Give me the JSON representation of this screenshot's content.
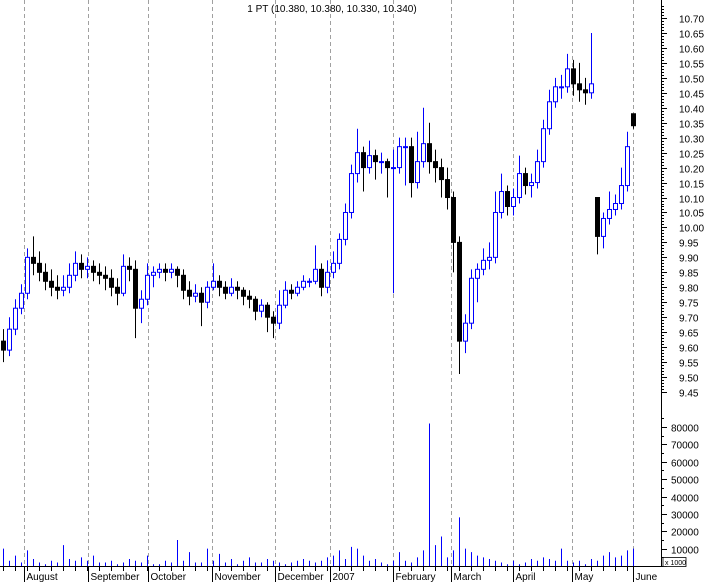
{
  "chart_data": {
    "type": "candlestick",
    "title": "1 PT (10.380, 10.380, 10.330, 10.340)",
    "price_axis": {
      "ylim": [
        9.45,
        10.7
      ],
      "ticks": [
        "10.70",
        "10.65",
        "10.60",
        "10.55",
        "10.50",
        "10.45",
        "10.40",
        "10.35",
        "10.30",
        "10.25",
        "10.20",
        "10.15",
        "10.10",
        "10.05",
        "10.00",
        "9.95",
        "9.90",
        "9.85",
        "9.80",
        "9.75",
        "9.70",
        "9.65",
        "9.60",
        "9.55",
        "9.50",
        "9.45"
      ]
    },
    "volume_axis": {
      "ylim": [
        0,
        80000
      ],
      "ticks": [
        "80000",
        "70000",
        "60000",
        "50000",
        "40000",
        "30000",
        "20000",
        "10000"
      ],
      "unit_label": "x 1000"
    },
    "x_labels": [
      {
        "label": "August",
        "bar": 3.5
      },
      {
        "label": "September",
        "bar": 14.2
      },
      {
        "label": "October",
        "bar": 24.2
      },
      {
        "label": "November",
        "bar": 34.8
      },
      {
        "label": "December",
        "bar": 45.3
      },
      {
        "label": "2007",
        "bar": 54.5
      },
      {
        "label": "February",
        "bar": 65
      },
      {
        "label": "March",
        "bar": 74.7
      },
      {
        "label": "April",
        "bar": 85
      },
      {
        "label": "May",
        "bar": 94.8
      },
      {
        "label": "June",
        "bar": 105
      }
    ],
    "grid": {
      "vertical_month_lines": true
    },
    "colors": {
      "up": "#0000ff",
      "down": "#000000",
      "volume": "#0000ff",
      "grid": "#a0a0a0"
    },
    "ohlc": [
      [
        9.62,
        9.66,
        9.55,
        9.59
      ],
      [
        9.59,
        9.7,
        9.57,
        9.66
      ],
      [
        9.66,
        9.76,
        9.64,
        9.73
      ],
      [
        9.73,
        9.81,
        9.71,
        9.78
      ],
      [
        9.78,
        9.93,
        9.76,
        9.9
      ],
      [
        9.9,
        9.97,
        9.84,
        9.88
      ],
      [
        9.88,
        9.92,
        9.82,
        9.85
      ],
      [
        9.85,
        9.88,
        9.79,
        9.82
      ],
      [
        9.82,
        9.86,
        9.77,
        9.8
      ],
      [
        9.8,
        9.84,
        9.76,
        9.79
      ],
      [
        9.79,
        9.84,
        9.77,
        9.8
      ],
      [
        9.8,
        9.88,
        9.78,
        9.84
      ],
      [
        9.84,
        9.92,
        9.82,
        9.88
      ],
      [
        9.88,
        9.91,
        9.83,
        9.86
      ],
      [
        9.86,
        9.9,
        9.83,
        9.87
      ],
      [
        9.87,
        9.89,
        9.82,
        9.85
      ],
      [
        9.85,
        9.88,
        9.81,
        9.84
      ],
      [
        9.84,
        9.87,
        9.79,
        9.83
      ],
      [
        9.83,
        9.86,
        9.77,
        9.8
      ],
      [
        9.8,
        9.83,
        9.74,
        9.78
      ],
      [
        9.78,
        9.91,
        9.77,
        9.87
      ],
      [
        9.87,
        9.9,
        9.82,
        9.86
      ],
      [
        9.86,
        9.89,
        9.63,
        9.73
      ],
      [
        9.73,
        9.79,
        9.68,
        9.76
      ],
      [
        9.76,
        9.88,
        9.74,
        9.84
      ],
      [
        9.84,
        9.87,
        9.8,
        9.85
      ],
      [
        9.85,
        9.88,
        9.83,
        9.86
      ],
      [
        9.86,
        9.88,
        9.82,
        9.85
      ],
      [
        9.85,
        9.88,
        9.83,
        9.86
      ],
      [
        9.86,
        9.87,
        9.8,
        9.84
      ],
      [
        9.84,
        9.86,
        9.76,
        9.79
      ],
      [
        9.79,
        9.82,
        9.74,
        9.77
      ],
      [
        9.77,
        9.81,
        9.75,
        9.78
      ],
      [
        9.78,
        9.8,
        9.67,
        9.75
      ],
      [
        9.75,
        9.82,
        9.73,
        9.8
      ],
      [
        9.8,
        9.88,
        9.79,
        9.82
      ],
      [
        9.82,
        9.84,
        9.77,
        9.8
      ],
      [
        9.8,
        9.82,
        9.76,
        9.78
      ],
      [
        9.78,
        9.83,
        9.77,
        9.8
      ],
      [
        9.8,
        9.82,
        9.76,
        9.79
      ],
      [
        9.79,
        9.8,
        9.74,
        9.77
      ],
      [
        9.77,
        9.79,
        9.73,
        9.76
      ],
      [
        9.76,
        9.77,
        9.69,
        9.72
      ],
      [
        9.72,
        9.76,
        9.7,
        9.74
      ],
      [
        9.74,
        9.75,
        9.65,
        9.7
      ],
      [
        9.7,
        9.72,
        9.63,
        9.68
      ],
      [
        9.68,
        9.79,
        9.66,
        9.74
      ],
      [
        9.74,
        9.82,
        9.73,
        9.79
      ],
      [
        9.79,
        9.81,
        9.76,
        9.78
      ],
      [
        9.78,
        9.82,
        9.77,
        9.8
      ],
      [
        9.8,
        9.84,
        9.79,
        9.82
      ],
      [
        9.82,
        9.83,
        9.8,
        9.82
      ],
      [
        9.82,
        9.94,
        9.81,
        9.86
      ],
      [
        9.86,
        9.88,
        9.77,
        9.8
      ],
      [
        9.8,
        9.89,
        9.78,
        9.85
      ],
      [
        9.85,
        9.92,
        9.83,
        9.88
      ],
      [
        9.88,
        9.98,
        9.86,
        9.96
      ],
      [
        9.96,
        10.08,
        9.94,
        10.05
      ],
      [
        10.05,
        10.21,
        10.03,
        10.18
      ],
      [
        10.18,
        10.33,
        10.15,
        10.25
      ],
      [
        10.25,
        10.27,
        10.12,
        10.2
      ],
      [
        10.2,
        10.29,
        10.18,
        10.24
      ],
      [
        10.24,
        10.26,
        10.16,
        10.22
      ],
      [
        10.22,
        10.25,
        10.18,
        10.22
      ],
      [
        10.22,
        10.23,
        10.1,
        10.2
      ],
      [
        10.2,
        10.26,
        9.78,
        10.2
      ],
      [
        10.2,
        10.3,
        10.18,
        10.27
      ],
      [
        10.27,
        10.3,
        10.14,
        10.27
      ],
      [
        10.27,
        10.3,
        10.1,
        10.15
      ],
      [
        10.15,
        10.32,
        10.13,
        10.22
      ],
      [
        10.22,
        10.4,
        10.2,
        10.28
      ],
      [
        10.28,
        10.35,
        10.18,
        10.22
      ],
      [
        10.22,
        10.26,
        10.15,
        10.2
      ],
      [
        10.2,
        10.23,
        10.1,
        10.16
      ],
      [
        10.16,
        10.2,
        10.06,
        10.1
      ],
      [
        10.1,
        10.12,
        9.85,
        9.95
      ],
      [
        9.95,
        9.97,
        9.51,
        9.62
      ],
      [
        9.62,
        9.71,
        9.58,
        9.68
      ],
      [
        9.68,
        9.86,
        9.66,
        9.83
      ],
      [
        9.83,
        9.88,
        9.75,
        9.86
      ],
      [
        9.86,
        9.93,
        9.84,
        9.89
      ],
      [
        9.89,
        9.95,
        9.86,
        9.9
      ],
      [
        9.9,
        10.12,
        9.88,
        10.05
      ],
      [
        10.05,
        10.18,
        10.03,
        10.12
      ],
      [
        10.12,
        10.14,
        10.04,
        10.07
      ],
      [
        10.07,
        10.13,
        10.04,
        10.1
      ],
      [
        10.1,
        10.24,
        10.08,
        10.18
      ],
      [
        10.18,
        10.2,
        10.11,
        10.14
      ],
      [
        10.14,
        10.18,
        10.1,
        10.15
      ],
      [
        10.15,
        10.26,
        10.13,
        10.22
      ],
      [
        10.22,
        10.36,
        10.2,
        10.33
      ],
      [
        10.33,
        10.46,
        10.31,
        10.42
      ],
      [
        10.42,
        10.5,
        10.4,
        10.47
      ],
      [
        10.47,
        10.51,
        10.43,
        10.47
      ],
      [
        10.47,
        10.58,
        10.45,
        10.53
      ],
      [
        10.53,
        10.56,
        10.44,
        10.48
      ],
      [
        10.48,
        10.55,
        10.42,
        10.46
      ],
      [
        10.46,
        10.5,
        10.41,
        10.45
      ],
      [
        10.45,
        10.65,
        10.43,
        10.48
      ],
      [
        10.1,
        10.1,
        9.91,
        9.97
      ],
      [
        9.97,
        10.05,
        9.93,
        10.03
      ],
      [
        10.03,
        10.12,
        10.01,
        10.06
      ],
      [
        10.06,
        10.11,
        10.04,
        10.08
      ],
      [
        10.08,
        10.2,
        10.06,
        10.14
      ],
      [
        10.14,
        10.32,
        10.12,
        10.27
      ],
      [
        10.38,
        10.38,
        10.33,
        10.34
      ]
    ],
    "volume": [
      10,
      3,
      6,
      2,
      9,
      4,
      2,
      1,
      3,
      2,
      12,
      4,
      3,
      5,
      3,
      6,
      2,
      2,
      3,
      1,
      2,
      4,
      3,
      2,
      6,
      1,
      1,
      3,
      2,
      15,
      3,
      8,
      2,
      2,
      10,
      3,
      7,
      2,
      4,
      1,
      3,
      5,
      2,
      2,
      4,
      3,
      2,
      1,
      2,
      3,
      4,
      3,
      2,
      3,
      5,
      6,
      9,
      4,
      11,
      10,
      6,
      3,
      4,
      2,
      1,
      3,
      8,
      3,
      2,
      5,
      9,
      82,
      12,
      17,
      5,
      9,
      28,
      10,
      8,
      6,
      5,
      4,
      3,
      2,
      1,
      3,
      1,
      2,
      4,
      3,
      5,
      4,
      3,
      10,
      3,
      2,
      3,
      1,
      4,
      3,
      6,
      8,
      5,
      6,
      9,
      10
    ],
    "volume_multiplier": 1000
  }
}
